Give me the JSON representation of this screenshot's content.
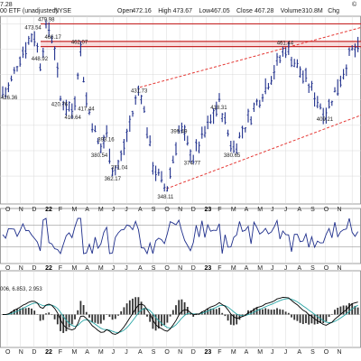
{
  "header": {
    "symbol_label": "00 ETF (unadjusted)",
    "exchange": "NYSE",
    "stats": [
      {
        "label": "Open",
        "value": "472.16"
      },
      {
        "label": "High",
        "value": "473.67"
      },
      {
        "label": "Low",
        "value": "467.05"
      },
      {
        "label": "Close",
        "value": "467.28"
      },
      {
        "label": "Volume",
        "value": "310.8M"
      },
      {
        "label": "Chg",
        "value": ""
      }
    ],
    "left_price": "7.28",
    "right_mark": "©"
  },
  "chart_data": {
    "type": "line",
    "panels": [
      {
        "name": "price",
        "style": "ohlc bars",
        "series": [
          {
            "points": [
              {
                "t": "2021-10",
                "v": 426.36
              },
              {
                "t": "2021-11",
                "v": 455
              },
              {
                "t": "2021-12",
                "v": 473.54
              },
              {
                "t": "2021-12b",
                "v": 448.92
              },
              {
                "t": "2022-01",
                "v": 479.98
              },
              {
                "t": "2022-01b",
                "v": 466.17
              },
              {
                "t": "2022-02",
                "v": 420.76
              },
              {
                "t": "2022-03",
                "v": 410.64
              },
              {
                "t": "2022-03b",
                "v": 462.07
              },
              {
                "t": "2022-04",
                "v": 417.44
              },
              {
                "t": "2022-05",
                "v": 380.54
              },
              {
                "t": "2022-05b",
                "v": 393.16
              },
              {
                "t": "2022-06",
                "v": 362.17
              },
              {
                "t": "2022-06b",
                "v": 371.04
              },
              {
                "t": "2022-08",
                "v": 431.73
              },
              {
                "t": "2022-09",
                "v": 368
              },
              {
                "t": "2022-10",
                "v": 348.11
              },
              {
                "t": "2022-11",
                "v": 399.49
              },
              {
                "t": "2022-12",
                "v": 374.77
              },
              {
                "t": "2023-02",
                "v": 418.31
              },
              {
                "t": "2023-03",
                "v": 380.65
              },
              {
                "t": "2023-07",
                "v": 461.44
              },
              {
                "t": "2023-10",
                "v": 409.21
              },
              {
                "t": "2023-12",
                "v": 459
              }
            ]
          }
        ],
        "price_labels": [
          {
            "text": "473.54",
            "t": "2021-12",
            "v": 473.54
          },
          {
            "text": "479.98",
            "t": "2022-01",
            "v": 479.98
          },
          {
            "text": "466.17",
            "t": "2022-01b",
            "v": 466.17
          },
          {
            "text": "462.07",
            "t": "2022-03b",
            "v": 462.07
          },
          {
            "text": "448.92",
            "t": "2021-12b",
            "v": 448.92
          },
          {
            "text": "426.36",
            "t": "2021-10",
            "v": 426.36
          },
          {
            "text": "420.76",
            "t": "2022-02",
            "v": 420.76
          },
          {
            "text": "410.64",
            "t": "2022-03",
            "v": 410.64
          },
          {
            "text": "417.44",
            "t": "2022-04",
            "v": 417.44
          },
          {
            "text": "431.73",
            "t": "2022-08",
            "v": 431.73
          },
          {
            "text": "393.16",
            "t": "2022-05b",
            "v": 393.16
          },
          {
            "text": "380.54",
            "t": "2022-05",
            "v": 380.54
          },
          {
            "text": "371.04",
            "t": "2022-06b",
            "v": 371.04
          },
          {
            "text": "362.17",
            "t": "2022-06",
            "v": 362.17
          },
          {
            "text": "348.11",
            "t": "2022-10",
            "v": 348.11
          },
          {
            "text": "374.77",
            "t": "2022-12",
            "v": 374.77
          },
          {
            "text": "399.49",
            "t": "2022-11",
            "v": 399.49
          },
          {
            "text": "418.31",
            "t": "2023-02",
            "v": 418.31
          },
          {
            "text": "380.65",
            "t": "2023-03",
            "v": 380.65
          },
          {
            "text": "461.44",
            "t": "2023-07",
            "v": 461.44
          },
          {
            "text": "409.21",
            "t": "2023-10",
            "v": 409.21
          }
        ],
        "resistance_levels": [
          479.98,
          466.17,
          462.07
        ],
        "trend_channel": {
          "upper": [
            {
              "t": "2022-08",
              "v": 430
            },
            {
              "t": "2024-01",
              "v": 480
            }
          ],
          "lower": [
            {
              "t": "2022-10",
              "v": 350
            },
            {
              "t": "2024-01",
              "v": 412
            }
          ]
        }
      },
      {
        "name": "RSI",
        "levels": [
          70,
          30
        ],
        "grid": true
      },
      {
        "name": "MACD",
        "legend_text": "006, 6.853, 2.953",
        "series_colors": [
          "#000000",
          "#2aa6a6",
          "#1b1b1b"
        ]
      }
    ],
    "x_ticks": [
      "O",
      "N",
      "D",
      "22",
      "F",
      "M",
      "A",
      "M",
      "J",
      "J",
      "A",
      "S",
      "O",
      "N",
      "D",
      "23",
      "F",
      "M",
      "A",
      "M",
      "J",
      "J",
      "A",
      "S",
      "O",
      "N"
    ],
    "grid": true,
    "colors": {
      "bars": "#1f2f8c",
      "resistance": "#c62828",
      "channel": "#e53935",
      "rsi_line": "#1f2f8c",
      "macd_hist": "#333333",
      "macd_signal": "#2aa6a6",
      "macd_line": "#000000",
      "bg": "#ffffff",
      "grid": "#d9d9d9"
    }
  }
}
